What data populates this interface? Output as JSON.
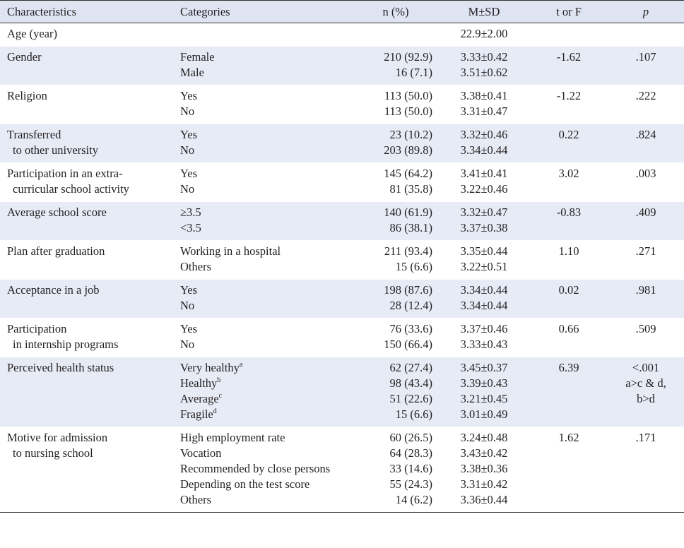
{
  "headers": {
    "characteristics": "Characteristics",
    "categories": "Categories",
    "n": "n (%)",
    "msd": "M±SD",
    "t": "t or F",
    "p": "p"
  },
  "rows": {
    "age": {
      "char1": "Age (year)",
      "msd1": "22.9±2.00"
    },
    "gender": {
      "char1": "Gender",
      "cat1": "Female",
      "cat2": "Male",
      "n1": "210 (92.9)",
      "n2": "16 (7.1)",
      "msd1": "3.33±0.42",
      "msd2": "3.51±0.62",
      "t": "-1.62",
      "p1": ".107"
    },
    "religion": {
      "char1": "Religion",
      "cat1": "Yes",
      "cat2": "No",
      "n1": "113 (50.0)",
      "n2": "113 (50.0)",
      "msd1": "3.38±0.41",
      "msd2": "3.31±0.47",
      "t": "-1.22",
      "p1": ".222"
    },
    "transferred": {
      "char1": "Transferred",
      "char2": "to other university",
      "cat1": "Yes",
      "cat2": "No",
      "n1": "23 (10.2)",
      "n2": "203 (89.8)",
      "msd1": "3.32±0.46",
      "msd2": "3.34±0.44",
      "t": "0.22",
      "p1": ".824"
    },
    "extra": {
      "char1": "Participation in an extra-",
      "char2": "curricular school activity",
      "cat1": "Yes",
      "cat2": "No",
      "n1": "145 (64.2)",
      "n2": "81 (35.8)",
      "msd1": "3.41±0.41",
      "msd2": "3.22±0.46",
      "t": "3.02",
      "p1": ".003"
    },
    "score": {
      "char1": "Average school score",
      "cat1": "≥3.5",
      "cat2": "<3.5",
      "n1": "140 (61.9)",
      "n2": "86 (38.1)",
      "msd1": "3.32±0.47",
      "msd2": "3.37±0.38",
      "t": "-0.83",
      "p1": ".409"
    },
    "plan": {
      "char1": "Plan after graduation",
      "cat1": "Working in a hospital",
      "cat2": "Others",
      "n1": "211 (93.4)",
      "n2": "15 (6.6)",
      "msd1": "3.35±0.44",
      "msd2": "3.22±0.51",
      "t": "1.10",
      "p1": ".271"
    },
    "job": {
      "char1": "Acceptance in a job",
      "cat1": "Yes",
      "cat2": "No",
      "n1": "198 (87.6)",
      "n2": "28 (12.4)",
      "msd1": "3.34±0.44",
      "msd2": "3.34±0.44",
      "t": "0.02",
      "p1": ".981"
    },
    "intern": {
      "char1": "Participation",
      "char2": "in internship programs",
      "cat1": "Yes",
      "cat2": "No",
      "n1": "76 (33.6)",
      "n2": "150 (66.4)",
      "msd1": "3.37±0.46",
      "msd2": "3.33±0.43",
      "t": "0.66",
      "p1": ".509"
    },
    "health": {
      "char1": "Perceived health status",
      "cat1": "Very healthy",
      "cat1sup": "a",
      "cat2": "Healthy",
      "cat2sup": "b",
      "cat3": "Average",
      "cat3sup": "c",
      "cat4": "Fragile",
      "cat4sup": "d",
      "n1": "62 (27.4)",
      "n2": "98 (43.4)",
      "n3": "51 (22.6)",
      "n4": "15 (6.6)",
      "msd1": "3.45±0.37",
      "msd2": "3.39±0.43",
      "msd3": "3.21±0.45",
      "msd4": "3.01±0.49",
      "t": "6.39",
      "p1": "<.001",
      "p2": "a>c & d,",
      "p3": "b>d"
    },
    "motive": {
      "char1": "Motive for admission",
      "char2": "to nursing school",
      "cat1": "High employment rate",
      "cat2": "Vocation",
      "cat3": "Recommended by close persons",
      "cat4": "Depending on the test score",
      "cat5": "Others",
      "n1": "60 (26.5)",
      "n2": "64 (28.3)",
      "n3": "33 (14.6)",
      "n4": "55 (24.3)",
      "n5": "14 (6.2)",
      "msd1": "3.24±0.48",
      "msd2": "3.43±0.42",
      "msd3": "3.38±0.36",
      "msd4": "3.31±0.42",
      "msd5": "3.36±0.44",
      "t": "1.62",
      "p1": ".171"
    }
  }
}
